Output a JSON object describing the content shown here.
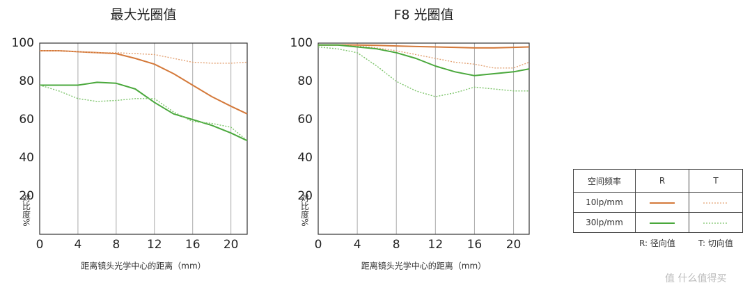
{
  "chart_data": [
    {
      "type": "line",
      "title": "最大光圈值",
      "x_label": "距离镜头光学中心的距离（mm）",
      "y_label": "对比度%",
      "x": [
        0,
        2,
        4,
        6,
        8,
        10,
        12,
        14,
        16,
        18,
        20,
        21.7
      ],
      "xlim": [
        0,
        21.7
      ],
      "xticks": [
        0,
        4,
        8,
        12,
        16,
        20
      ],
      "ylim": [
        0,
        100
      ],
      "yticks": [
        20,
        40,
        60,
        80,
        100
      ],
      "grid": "x",
      "series": [
        {
          "name": "10lp/mm",
          "direction": "R",
          "color": "#d4793a",
          "style": "solid",
          "values": [
            96,
            96,
            95.5,
            95,
            94.5,
            92,
            89,
            84,
            78,
            72,
            67,
            63
          ]
        },
        {
          "name": "10lp/mm",
          "direction": "T",
          "color": "#e3a274",
          "style": "dotted",
          "values": [
            96,
            96,
            95.5,
            95,
            95,
            94.5,
            94,
            92,
            90,
            89.5,
            89.5,
            90
          ]
        },
        {
          "name": "30lp/mm",
          "direction": "R",
          "color": "#4aa83c",
          "style": "solid",
          "values": [
            78,
            78,
            78,
            79.5,
            79,
            76,
            69,
            63,
            60,
            57,
            53,
            49
          ]
        },
        {
          "name": "30lp/mm",
          "direction": "T",
          "color": "#7cc46a",
          "style": "dotted",
          "values": [
            78,
            75,
            71,
            69.5,
            70,
            71,
            71,
            64,
            59,
            58,
            56,
            49
          ]
        }
      ]
    },
    {
      "type": "line",
      "title": "F8 光圈值",
      "x_label": "距离镜头光学中心的距离（mm）",
      "y_label": "对比度%",
      "x": [
        0,
        2,
        4,
        6,
        8,
        10,
        12,
        14,
        16,
        18,
        20,
        21.6
      ],
      "xlim": [
        0,
        21.6
      ],
      "xticks": [
        0,
        4,
        8,
        12,
        16,
        20
      ],
      "ylim": [
        0,
        100
      ],
      "yticks": [
        20,
        40,
        60,
        80,
        100
      ],
      "grid": "x",
      "series": [
        {
          "name": "10lp/mm",
          "direction": "R",
          "color": "#d4793a",
          "style": "solid",
          "values": [
            99,
            99,
            99,
            98.8,
            98.5,
            98.2,
            98,
            97.8,
            97.5,
            97.5,
            97.8,
            98
          ]
        },
        {
          "name": "10lp/mm",
          "direction": "T",
          "color": "#e3a274",
          "style": "dotted",
          "values": [
            99,
            99,
            98.5,
            97.5,
            96,
            94,
            92,
            90,
            89,
            87,
            87,
            90
          ]
        },
        {
          "name": "30lp/mm",
          "direction": "R",
          "color": "#4aa83c",
          "style": "solid",
          "values": [
            99,
            99,
            98,
            97,
            95,
            92,
            88,
            85,
            83,
            84,
            85,
            86.5
          ]
        },
        {
          "name": "30lp/mm",
          "direction": "T",
          "color": "#7cc46a",
          "style": "dotted",
          "values": [
            98,
            97,
            95,
            88,
            80,
            75,
            72,
            74,
            77,
            76,
            75,
            75
          ]
        }
      ]
    }
  ],
  "legend": {
    "header": [
      "空间频率",
      "R",
      "T"
    ],
    "rows": [
      "10lp/mm",
      "30lp/mm"
    ],
    "notes": [
      "R: 径向值",
      "T: 切向值"
    ]
  },
  "watermark": "值 什么值得买"
}
